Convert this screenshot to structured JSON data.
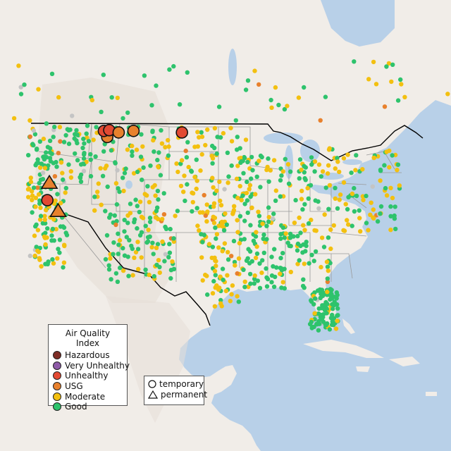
{
  "colors": {
    "water": "#b8d0e8",
    "land": "#f1ede8",
    "land_shade": "#e6ded7",
    "lake": "#b8d0e8",
    "state_line": "#9a9a9a",
    "country_line": "#000000",
    "missing": "#c4c4c4"
  },
  "legend": {
    "title": "Air Quality Index",
    "categories": [
      {
        "label": "Hazardous",
        "color": "#7e2d26"
      },
      {
        "label": "Very Unhealthy",
        "color": "#8e5ba8"
      },
      {
        "label": "Unhealthy",
        "color": "#e34a33"
      },
      {
        "label": "USG",
        "color": "#e8812d"
      },
      {
        "label": "Moderate",
        "color": "#f3c010"
      },
      {
        "label": "Good",
        "color": "#2ec36c"
      }
    ],
    "site_types": [
      {
        "label": "temporary",
        "shape": "circle"
      },
      {
        "label": "permanent",
        "shape": "triangle"
      }
    ]
  },
  "monitors": {
    "large_markers": [
      {
        "lon": -113.3,
        "lat": 47.2,
        "category": "USG",
        "type": "temporary"
      },
      {
        "lon": -113.8,
        "lat": 48.0,
        "category": "Unhealthy",
        "type": "temporary"
      },
      {
        "lon": -113.0,
        "lat": 48.1,
        "category": "Unhealthy",
        "type": "temporary"
      },
      {
        "lon": -111.6,
        "lat": 47.8,
        "category": "USG",
        "type": "temporary"
      },
      {
        "lon": -109.4,
        "lat": 48.0,
        "category": "USG",
        "type": "temporary"
      },
      {
        "lon": -102.2,
        "lat": 47.8,
        "category": "Unhealthy",
        "type": "temporary"
      },
      {
        "lon": -121.9,
        "lat": 41.2,
        "category": "USG",
        "type": "permanent"
      },
      {
        "lon": -122.2,
        "lat": 38.9,
        "category": "Unhealthy",
        "type": "temporary"
      },
      {
        "lon": -120.6,
        "lat": 37.5,
        "category": "USG",
        "type": "permanent"
      }
    ],
    "small_summary": {
      "Hazardous": 1,
      "Unhealthy": 8,
      "USG": 6,
      "Moderate": 430,
      "Good": 640
    }
  }
}
